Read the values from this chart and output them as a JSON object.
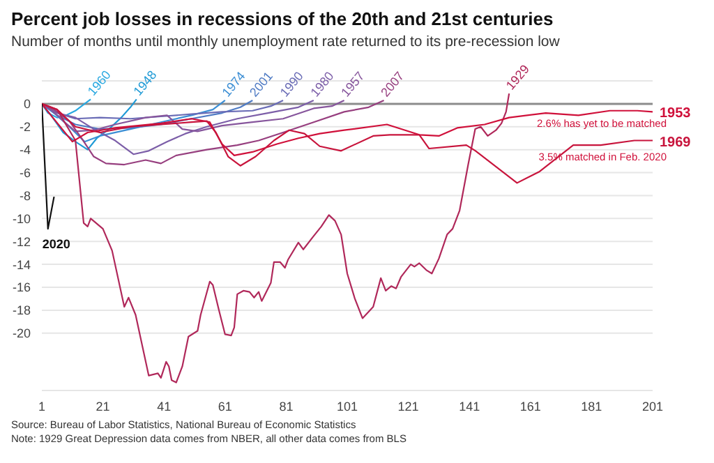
{
  "chart_data": {
    "type": "line",
    "title": "Percent job losses in recessions of the 20th and 21st centuries",
    "subtitle": "Number of months until monthly unemployment rate returned to its pre-recession low",
    "xlim": [
      1,
      201
    ],
    "xticks": [
      1,
      21,
      41,
      61,
      81,
      101,
      121,
      141,
      161,
      181,
      201
    ],
    "ylim": [
      -25,
      2
    ],
    "yticks": [
      0,
      -2,
      -4,
      -6,
      -8,
      -10,
      -12,
      -14,
      -16,
      -18,
      -20
    ],
    "grid": "y",
    "ref_lines": [
      {
        "axis": "y",
        "value": 0,
        "color": "#8c8c8c"
      }
    ],
    "series": [
      {
        "name": "1960",
        "color": "#29a8e0",
        "x": [
          1,
          3,
          6,
          9,
          12,
          15,
          17
        ],
        "values": [
          0,
          -0.8,
          -1.2,
          -1,
          -0.6,
          0,
          0.4
        ]
      },
      {
        "name": "1948",
        "color": "#1e9ad6",
        "x": [
          1,
          4,
          8,
          12,
          16,
          19,
          23,
          27,
          30,
          32
        ],
        "values": [
          0,
          -1,
          -2.5,
          -3.3,
          -4,
          -3,
          -2.2,
          -1.2,
          -0.3,
          0.4
        ]
      },
      {
        "name": "1974",
        "color": "#3b8ed4",
        "x": [
          1,
          5,
          10,
          15,
          20,
          30,
          40,
          50,
          57,
          61
        ],
        "values": [
          0,
          -0.8,
          -2,
          -3.3,
          -2.8,
          -2.2,
          -1.6,
          -1,
          -0.5,
          0.3
        ]
      },
      {
        "name": "2001",
        "color": "#4f7bc4",
        "x": [
          1,
          6,
          12,
          20,
          30,
          40,
          50,
          60,
          66,
          70
        ],
        "values": [
          0,
          -1,
          -1.8,
          -2.2,
          -2.1,
          -1.8,
          -1.3,
          -0.8,
          -0.3,
          0.3
        ]
      },
      {
        "name": "1990",
        "color": "#6a6cb6",
        "x": [
          1,
          6,
          12,
          20,
          30,
          40,
          50,
          60,
          70,
          76,
          80
        ],
        "values": [
          0,
          -0.8,
          -1.3,
          -1.2,
          -1.3,
          -1.1,
          -0.9,
          -0.7,
          -0.6,
          -0.2,
          0.3
        ]
      },
      {
        "name": "1980",
        "color": "#7c5ea8",
        "x": [
          1,
          6,
          12,
          18,
          25,
          31,
          36,
          42,
          48,
          55,
          65,
          75,
          85,
          90
        ],
        "values": [
          0,
          -0.8,
          -1.2,
          -2.2,
          -3.2,
          -4.4,
          -4.1,
          -3.3,
          -2.6,
          -2,
          -1.3,
          -0.8,
          -0.3,
          0.3
        ]
      },
      {
        "name": "1957",
        "color": "#86559c",
        "x": [
          1,
          4,
          8,
          12,
          18,
          25,
          35,
          42,
          47,
          52,
          60,
          70,
          80,
          90,
          96,
          100
        ],
        "values": [
          0,
          -0.5,
          -1.5,
          -2.4,
          -2.3,
          -1.8,
          -1.2,
          -1,
          -2.2,
          -2.4,
          -1.9,
          -1.6,
          -1.3,
          -0.4,
          -0.2,
          0.3
        ]
      },
      {
        "name": "2007",
        "color": "#973f7f",
        "x": [
          1,
          5,
          10,
          14,
          18,
          22,
          28,
          35,
          40,
          45,
          55,
          65,
          72,
          80,
          90,
          100,
          108,
          113
        ],
        "values": [
          0,
          -0.5,
          -1.5,
          -3,
          -4.6,
          -5.2,
          -5.3,
          -4.9,
          -5.2,
          -4.5,
          -4,
          -3.6,
          -3.2,
          -2.5,
          -1.6,
          -0.7,
          -0.3,
          0.3
        ]
      },
      {
        "name": "1929",
        "color": "#b0285a",
        "x": [
          1,
          6,
          12,
          14.7,
          16,
          17,
          21,
          24,
          28,
          29.4,
          31.7,
          36,
          39,
          40,
          41.7,
          42.6,
          43.5,
          45,
          47,
          49,
          52,
          53,
          56,
          57,
          59,
          61,
          63,
          64,
          65,
          67,
          69,
          70.5,
          72,
          73,
          76,
          77,
          79,
          80.6,
          81.6,
          85,
          86.6,
          89.8,
          92.5,
          95,
          97,
          99,
          101,
          103.5,
          106,
          109.5,
          112,
          113.6,
          115.4,
          117,
          118.6,
          121.8,
          123,
          124.6,
          126.9,
          128.7,
          131,
          133.7,
          135.5,
          137.8,
          140.6,
          142.9,
          144.7,
          147,
          149.7,
          151.5,
          153,
          154
        ],
        "values": [
          0,
          -0.5,
          -3.2,
          -10.4,
          -10.7,
          -10,
          -10.9,
          -12.8,
          -17.7,
          -16.9,
          -18.4,
          -23.7,
          -23.5,
          -23.9,
          -22.5,
          -22.9,
          -24.1,
          -24.3,
          -22.9,
          -20.3,
          -19.8,
          -18.4,
          -15.5,
          -15.8,
          -18,
          -20.1,
          -20.2,
          -19.5,
          -16.6,
          -16.3,
          -16.4,
          -16.9,
          -16.4,
          -17.2,
          -15.6,
          -13.8,
          -13.8,
          -14.3,
          -13.6,
          -12.1,
          -12.7,
          -11.6,
          -10.7,
          -9.7,
          -10.2,
          -11.4,
          -14.8,
          -17,
          -18.7,
          -17.7,
          -15.2,
          -16.3,
          -15.9,
          -16.1,
          -15.1,
          -14,
          -14.2,
          -13.9,
          -14.5,
          -14.8,
          -13.5,
          -11.4,
          -10.9,
          -9.3,
          -5.3,
          -2.2,
          -2,
          -2.8,
          -2.3,
          -1.7,
          -0.7,
          0.9
        ]
      },
      {
        "name": "1953",
        "color": "#d0103a",
        "x": [
          1,
          4,
          11,
          16,
          25,
          40,
          50,
          56,
          60,
          64,
          70,
          78,
          85,
          92,
          100,
          114,
          124.6,
          131,
          137,
          146,
          154,
          166,
          176.7,
          187,
          196,
          201
        ],
        "values": [
          0,
          -1,
          -3.3,
          -2.5,
          -2.1,
          -1.7,
          -1.3,
          -1.6,
          -3.5,
          -4.5,
          -4.2,
          -3.5,
          -3,
          -2.6,
          -2.3,
          -1.8,
          -2.7,
          -2.8,
          -2.1,
          -1.8,
          -1.2,
          -0.8,
          -1,
          -0.6,
          -0.6,
          -0.7
        ]
      },
      {
        "name": "1969",
        "color": "#c8143c",
        "x": [
          1,
          6,
          12,
          20,
          30,
          40,
          50,
          55,
          58,
          62,
          66,
          71,
          77,
          82,
          87,
          92,
          99,
          109.5,
          115,
          124.6,
          127.8,
          140,
          143,
          156.6,
          164,
          175,
          184,
          195,
          201
        ],
        "values": [
          0,
          -0.5,
          -2,
          -2.5,
          -2,
          -1.8,
          -1.6,
          -1.5,
          -2.5,
          -4.6,
          -5.4,
          -4.6,
          -3.2,
          -2.3,
          -2.6,
          -3.7,
          -4.1,
          -2.8,
          -2.7,
          -2.7,
          -3.9,
          -3.6,
          -4.1,
          -6.9,
          -5.9,
          -3.6,
          -3.6,
          -3.2,
          -3.2
        ]
      },
      {
        "name": "2020",
        "color": "#111111",
        "x": [
          1,
          3,
          4,
          5
        ],
        "values": [
          0,
          -10.9,
          -9.5,
          -8.1
        ]
      }
    ],
    "annotations": [
      "2.6% has yet to be matched",
      "3.5% matched in Feb. 2020",
      "Source: Bureau of Labor Statistics, National Bureau of Economic Statistics",
      "Note: 1929 Great Depression data comes from NBER, all other data comes from BLS"
    ]
  }
}
